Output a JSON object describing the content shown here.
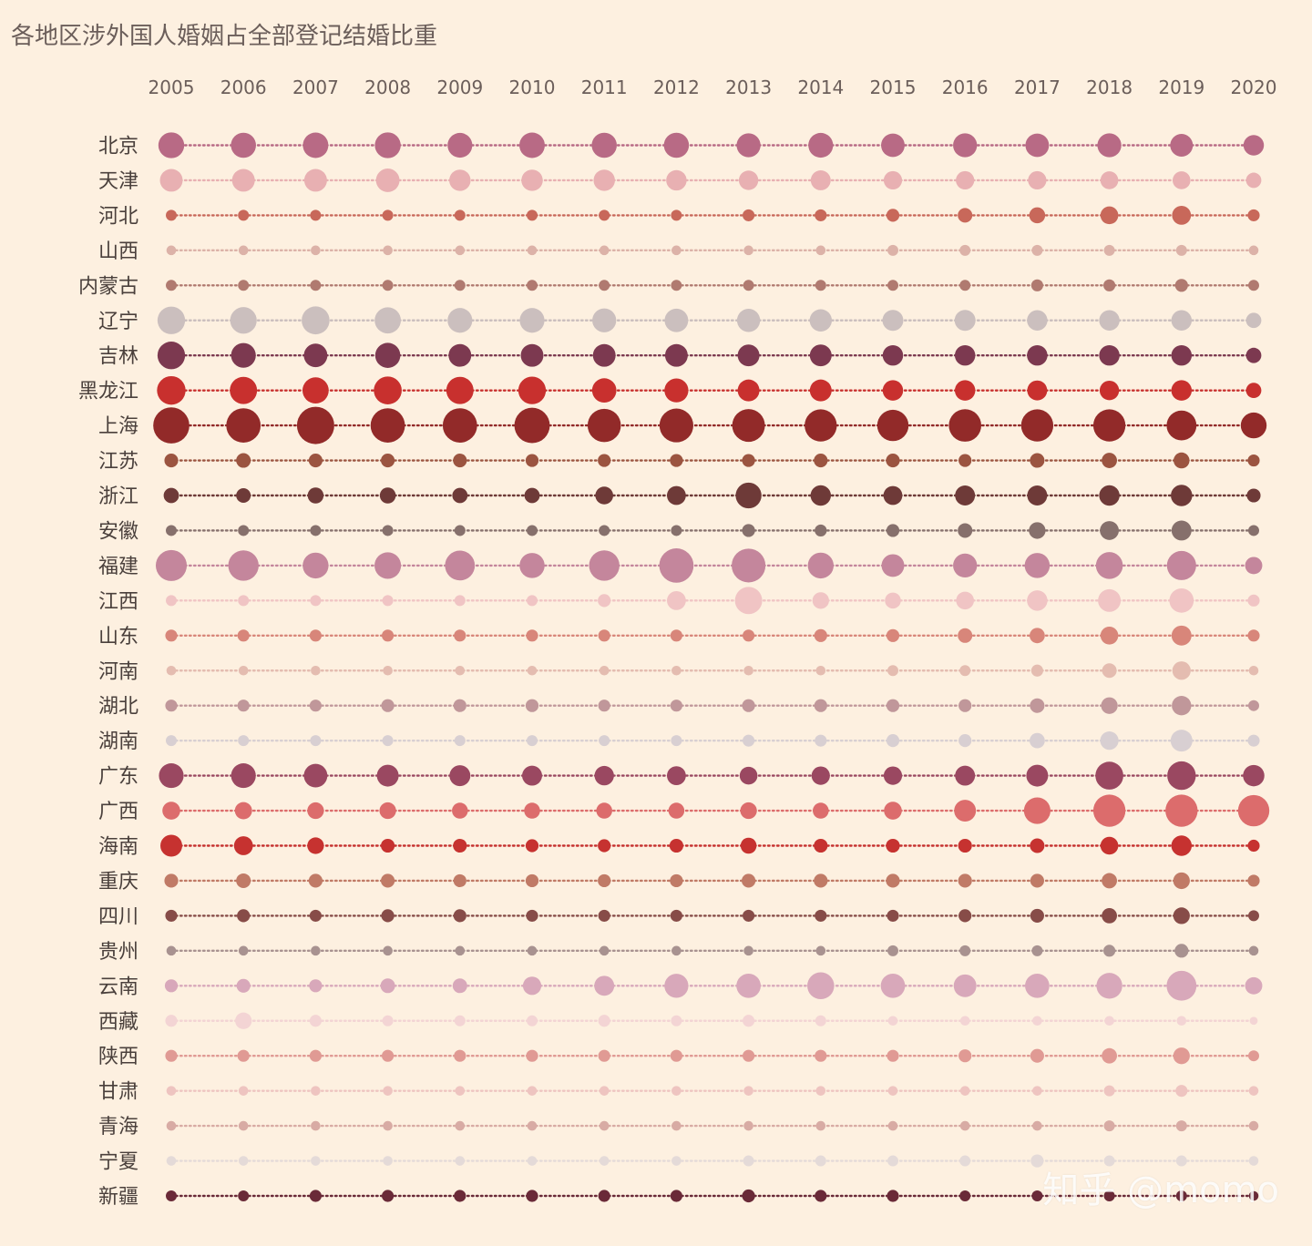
{
  "watermark": "知乎 @momo",
  "chart_data": {
    "type": "scatter",
    "title": "各地区涉外国人婚姻占全部登记结婚比重",
    "xlabel": "",
    "ylabel": "",
    "x": [
      "2005",
      "2006",
      "2007",
      "2008",
      "2009",
      "2010",
      "2011",
      "2012",
      "2013",
      "2014",
      "2015",
      "2016",
      "2017",
      "2018",
      "2019",
      "2020"
    ],
    "size_unit": "relative share (0-100, estimated from bubble size)",
    "series": [
      {
        "name": "北京",
        "color": "#b86a85",
        "values": [
          30,
          28,
          29,
          30,
          27,
          29,
          28,
          28,
          25,
          27,
          24,
          25,
          24,
          25,
          22,
          17
        ]
      },
      {
        "name": "天津",
        "color": "#e8b0b2",
        "values": [
          22,
          22,
          22,
          24,
          19,
          19,
          19,
          17,
          15,
          16,
          13,
          13,
          13,
          12,
          12,
          8
        ]
      },
      {
        "name": "河北",
        "color": "#c8685a",
        "values": [
          3,
          3,
          3,
          3,
          3,
          3,
          3,
          3,
          4,
          4,
          5,
          7,
          9,
          12,
          14,
          4
        ]
      },
      {
        "name": "山西",
        "color": "#dcb2a8",
        "values": [
          2,
          2,
          2,
          2,
          2,
          2,
          2,
          2,
          2,
          2,
          3,
          3,
          3,
          3,
          3,
          2
        ]
      },
      {
        "name": "内蒙古",
        "color": "#b07a70",
        "values": [
          3,
          3,
          3,
          3,
          3,
          3,
          3,
          3,
          3,
          3,
          3,
          3,
          4,
          4,
          5,
          3
        ]
      },
      {
        "name": "辽宁",
        "color": "#cbbfbe",
        "values": [
          35,
          32,
          36,
          31,
          27,
          27,
          25,
          24,
          23,
          21,
          18,
          18,
          17,
          17,
          17,
          8
        ]
      },
      {
        "name": "吉林",
        "color": "#7c3950",
        "values": [
          35,
          27,
          24,
          28,
          22,
          22,
          22,
          22,
          20,
          20,
          17,
          17,
          17,
          17,
          17,
          8
        ]
      },
      {
        "name": "黑龙江",
        "color": "#c8302e",
        "values": [
          38,
          34,
          31,
          36,
          34,
          35,
          26,
          25,
          20,
          20,
          17,
          17,
          16,
          15,
          17,
          8
        ]
      },
      {
        "name": "上海",
        "color": "#922a29",
        "values": [
          65,
          58,
          70,
          58,
          58,
          62,
          54,
          56,
          52,
          50,
          47,
          51,
          50,
          50,
          42,
          30
        ]
      },
      {
        "name": "江苏",
        "color": "#9b5440",
        "values": [
          6,
          7,
          6,
          6,
          6,
          5,
          5,
          5,
          5,
          6,
          6,
          5,
          7,
          8,
          9,
          4
        ]
      },
      {
        "name": "浙江",
        "color": "#6e3a38",
        "values": [
          8,
          7,
          9,
          9,
          8,
          8,
          12,
          14,
          30,
          17,
          14,
          16,
          16,
          17,
          19,
          6
        ]
      },
      {
        "name": "安徽",
        "color": "#86706c",
        "values": [
          3,
          3,
          3,
          3,
          3,
          3,
          3,
          3,
          5,
          4,
          5,
          7,
          10,
          14,
          16,
          3
        ]
      },
      {
        "name": "福建",
        "color": "#c4869c",
        "values": [
          46,
          44,
          30,
          32,
          42,
          28,
          44,
          58,
          56,
          30,
          22,
          25,
          28,
          33,
          40,
          11
        ]
      },
      {
        "name": "江西",
        "color": "#f0c4c4",
        "values": [
          3,
          3,
          3,
          3,
          3,
          3,
          5,
          14,
          34,
          10,
          9,
          12,
          17,
          22,
          26,
          4
        ]
      },
      {
        "name": "山东",
        "color": "#d8867a",
        "values": [
          4,
          4,
          4,
          4,
          4,
          4,
          4,
          4,
          4,
          5,
          5,
          7,
          8,
          12,
          16,
          4
        ]
      },
      {
        "name": "河南",
        "color": "#e4bcb0",
        "values": [
          2,
          2,
          2,
          2,
          2,
          2,
          2,
          2,
          2,
          2,
          3,
          3,
          4,
          7,
          13,
          2
        ]
      },
      {
        "name": "湖北",
        "color": "#c0979a",
        "values": [
          4,
          4,
          4,
          5,
          5,
          5,
          4,
          4,
          5,
          5,
          5,
          5,
          7,
          10,
          15,
          3
        ]
      },
      {
        "name": "湖南",
        "color": "#d8cfd2",
        "values": [
          3,
          3,
          3,
          3,
          3,
          3,
          3,
          3,
          4,
          4,
          5,
          5,
          8,
          13,
          20,
          4
        ]
      },
      {
        "name": "广东",
        "color": "#9a4861",
        "values": [
          27,
          27,
          24,
          20,
          18,
          16,
          15,
          14,
          12,
          13,
          13,
          16,
          20,
          36,
          38,
          19
        ]
      },
      {
        "name": "广西",
        "color": "#dc6c6c",
        "values": [
          12,
          11,
          10,
          10,
          9,
          9,
          9,
          9,
          10,
          9,
          12,
          20,
          32,
          50,
          50,
          47
        ]
      },
      {
        "name": "海南",
        "color": "#c63230",
        "values": [
          20,
          14,
          10,
          6,
          6,
          5,
          5,
          6,
          9,
          6,
          6,
          6,
          7,
          12,
          17,
          4
        ]
      },
      {
        "name": "重庆",
        "color": "#c07a66",
        "values": [
          6,
          7,
          6,
          6,
          5,
          5,
          5,
          5,
          6,
          6,
          6,
          6,
          6,
          8,
          10,
          4
        ]
      },
      {
        "name": "四川",
        "color": "#874c48",
        "values": [
          4,
          5,
          4,
          5,
          5,
          4,
          4,
          4,
          4,
          4,
          4,
          5,
          6,
          8,
          10,
          3
        ]
      },
      {
        "name": "贵州",
        "color": "#a89290",
        "values": [
          2,
          2,
          2,
          2,
          2,
          2,
          2,
          2,
          2,
          2,
          3,
          3,
          3,
          4,
          6,
          2
        ]
      },
      {
        "name": "云南",
        "color": "#d8a8ba",
        "values": [
          5,
          6,
          5,
          7,
          7,
          13,
          16,
          25,
          26,
          33,
          26,
          22,
          26,
          30,
          42,
          11
        ]
      },
      {
        "name": "西藏",
        "color": "#f3d4d4",
        "values": [
          4,
          10,
          4,
          3,
          3,
          3,
          4,
          3,
          4,
          3,
          2,
          2,
          2,
          2,
          2,
          1
        ]
      },
      {
        "name": "陕西",
        "color": "#e09a94",
        "values": [
          4,
          4,
          4,
          4,
          4,
          4,
          4,
          4,
          4,
          4,
          4,
          5,
          6,
          8,
          10,
          3
        ]
      },
      {
        "name": "甘肃",
        "color": "#eec4c0",
        "values": [
          2,
          2,
          2,
          2,
          2,
          2,
          2,
          2,
          2,
          2,
          2,
          2,
          2,
          3,
          4,
          2
        ]
      },
      {
        "name": "青海",
        "color": "#d8aba4",
        "values": [
          2,
          2,
          2,
          2,
          2,
          2,
          2,
          2,
          2,
          2,
          2,
          2,
          2,
          3,
          3,
          2
        ]
      },
      {
        "name": "宁夏",
        "color": "#e4dad8",
        "values": [
          2,
          2,
          2,
          2,
          2,
          2,
          2,
          2,
          3,
          3,
          3,
          3,
          5,
          3,
          3,
          2
        ]
      },
      {
        "name": "新疆",
        "color": "#6a2a38",
        "values": [
          3,
          3,
          4,
          4,
          4,
          4,
          4,
          4,
          5,
          4,
          4,
          3,
          3,
          3,
          3,
          2
        ]
      }
    ]
  }
}
